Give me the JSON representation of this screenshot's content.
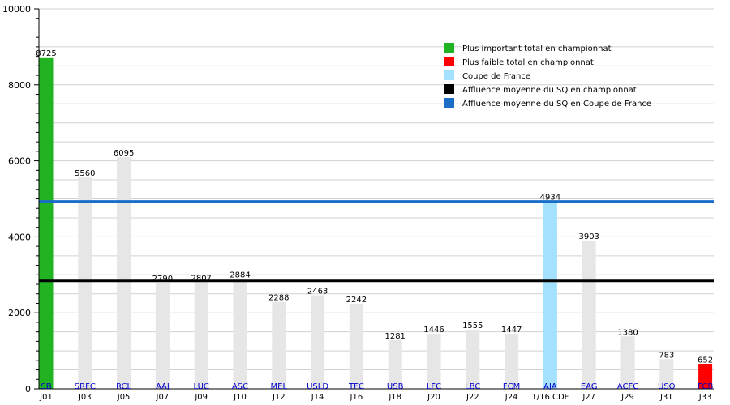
{
  "chart_data": {
    "type": "bar",
    "title": "",
    "xlabel": "",
    "ylabel": "",
    "ylim": [
      0,
      10000
    ],
    "yticks": [
      0,
      2000,
      4000,
      6000,
      8000,
      10000
    ],
    "grid": true,
    "legend_position": "top-right",
    "bars": [
      {
        "team": "SB",
        "round": "J01",
        "value": 8725,
        "kind": "max"
      },
      {
        "team": "SRFC",
        "round": "J03",
        "value": 5560,
        "kind": "normal"
      },
      {
        "team": "RCL",
        "round": "J05",
        "value": 6095,
        "kind": "normal"
      },
      {
        "team": "AAJ",
        "round": "J07",
        "value": 2790,
        "kind": "normal"
      },
      {
        "team": "LUC",
        "round": "J09",
        "value": 2807,
        "kind": "normal"
      },
      {
        "team": "ASC",
        "round": "J10",
        "value": 2884,
        "kind": "normal"
      },
      {
        "team": "MEL",
        "round": "J12",
        "value": 2288,
        "kind": "normal"
      },
      {
        "team": "USLD",
        "round": "J14",
        "value": 2463,
        "kind": "normal"
      },
      {
        "team": "TFC",
        "round": "J16",
        "value": 2242,
        "kind": "normal"
      },
      {
        "team": "USB",
        "round": "J18",
        "value": 1281,
        "kind": "normal"
      },
      {
        "team": "LFC",
        "round": "J20",
        "value": 1446,
        "kind": "normal"
      },
      {
        "team": "LBC",
        "round": "J22",
        "value": 1555,
        "kind": "normal"
      },
      {
        "team": "FCM",
        "round": "J24",
        "value": 1447,
        "kind": "normal"
      },
      {
        "team": "AJA",
        "round": "1/16 CDF",
        "value": 4934,
        "kind": "cup"
      },
      {
        "team": "EAG",
        "round": "J27",
        "value": 3903,
        "kind": "normal"
      },
      {
        "team": "ACFC",
        "round": "J29",
        "value": 1380,
        "kind": "normal"
      },
      {
        "team": "USO",
        "round": "J31",
        "value": 783,
        "kind": "normal"
      },
      {
        "team": "FCB",
        "round": "J33",
        "value": 652,
        "kind": "min"
      }
    ],
    "reference_lines": [
      {
        "name": "Affluence moyenne du SQ en championnat",
        "value": 2840,
        "color": "#000000"
      },
      {
        "name": "Affluence moyenne du SQ en Coupe de France",
        "value": 4934,
        "color": "#1a6ec8"
      }
    ],
    "legend": [
      {
        "label": "Plus important total en championnat",
        "color": "#22b322"
      },
      {
        "label": "Plus faible total en championnat",
        "color": "#ff0000"
      },
      {
        "label": "Coupe de France",
        "color": "#a3e1ff"
      },
      {
        "label": "Affluence moyenne du SQ en championnat",
        "color": "#000000"
      },
      {
        "label": "Affluence moyenne du SQ en Coupe de France",
        "color": "#1a6ec8"
      }
    ],
    "colors": {
      "normal": "#e6e6e6",
      "max": "#22b322",
      "min": "#ff0000",
      "cup": "#a3e1ff",
      "team_label": "#0000cc",
      "grid": "#d0d0d0"
    }
  }
}
